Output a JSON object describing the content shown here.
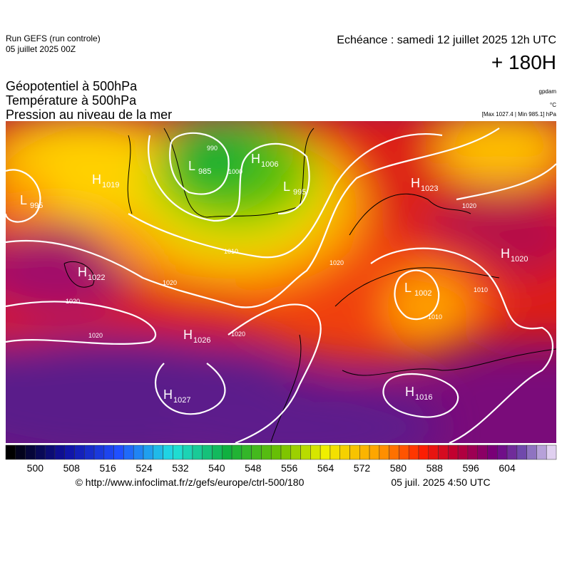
{
  "header": {
    "run": "Run GEFS (run controle)",
    "run_date": "05 juillet 2025 00Z",
    "valid": "Echéance : samedi 12 juillet 2025 12h UTC",
    "lead": "+ 180H",
    "titles": [
      "Géopotentiel à 500hPa",
      "Température à 500hPa",
      "Pression au niveau de la mer"
    ],
    "units": [
      "gpdam",
      "°C",
      "[Max 1027.4 | Min 985.1] hPa"
    ]
  },
  "map": {
    "centers": [
      {
        "kind": "L",
        "value": "995"
      },
      {
        "kind": "H",
        "value": "1019"
      },
      {
        "kind": "L",
        "value": "985"
      },
      {
        "kind": "H",
        "value": "1006"
      },
      {
        "kind": "L",
        "value": "995"
      },
      {
        "kind": "H",
        "value": "1023"
      },
      {
        "kind": "H",
        "value": "1020"
      },
      {
        "kind": "H",
        "value": "1022"
      },
      {
        "kind": "L",
        "value": "1002"
      },
      {
        "kind": "H",
        "value": "1026"
      },
      {
        "kind": "H",
        "value": "1027"
      },
      {
        "kind": "H",
        "value": "1016"
      }
    ],
    "isobar_labels": [
      "990",
      "1000",
      "1010",
      "1020",
      "1020",
      "1020",
      "1020",
      "1020",
      "1010",
      "1010",
      "1020"
    ]
  },
  "colorbar": {
    "ticks": [
      500,
      508,
      516,
      524,
      532,
      540,
      548,
      556,
      564,
      572,
      580,
      588,
      596,
      604
    ]
  },
  "footer": {
    "source": "© http://www.infoclimat.fr/z/gefs/europe/ctrl-500/180",
    "generated": "05 juil. 2025  4:50 UTC"
  }
}
